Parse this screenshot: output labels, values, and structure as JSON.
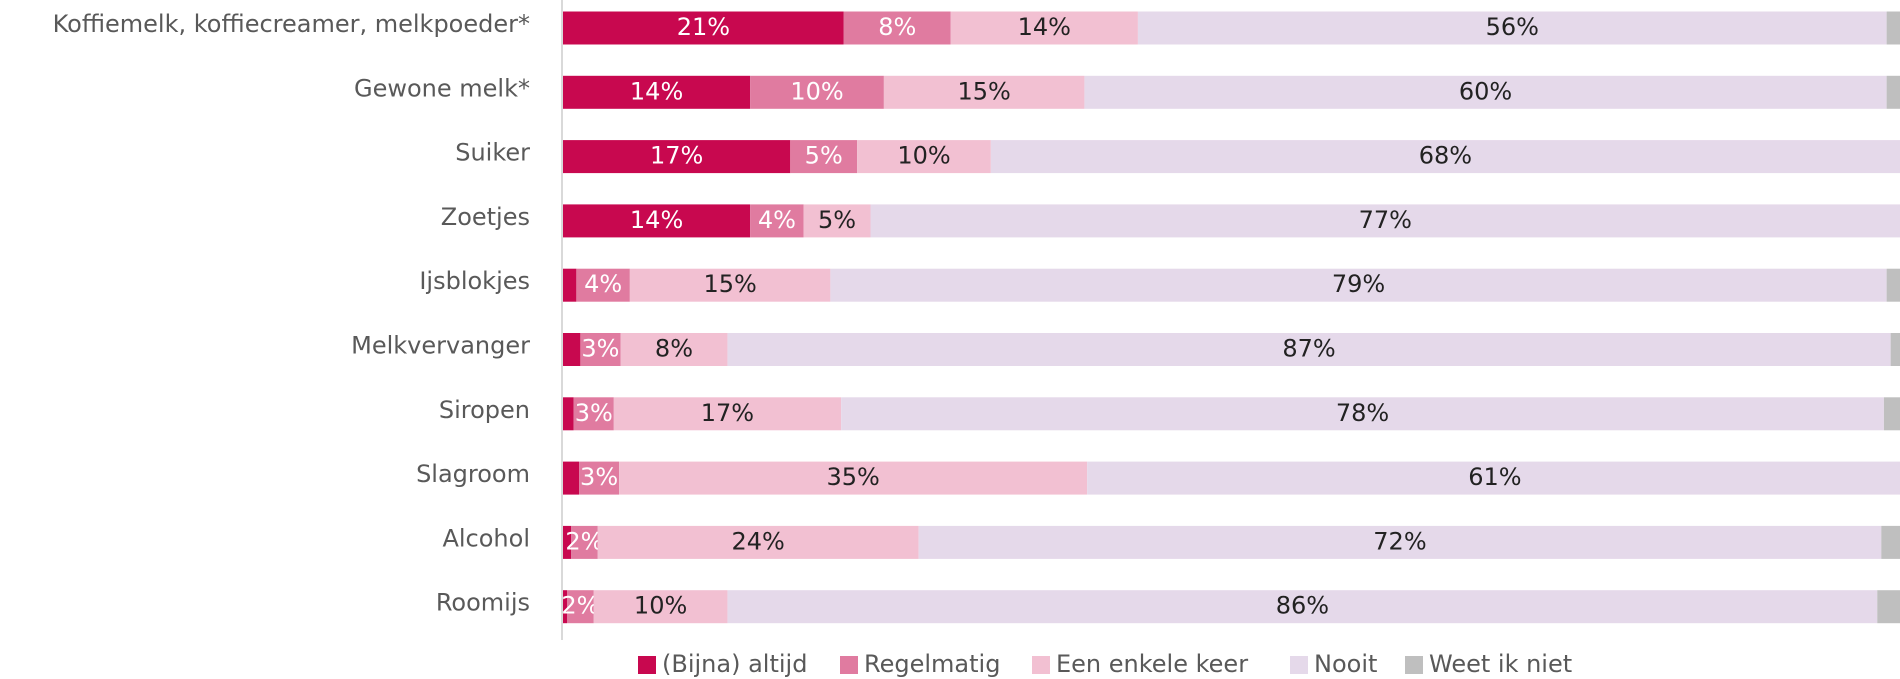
{
  "chart_data": {
    "type": "stacked-bar-horizontal",
    "categories": [
      "Koffiemelk, koffiecreamer, melkpoeder*",
      "Gewone melk*",
      "Suiker",
      "Zoetjes",
      "Ijsblokjes",
      "Melkvervanger",
      "Siropen",
      "Slagroom",
      "Alcohol",
      "Roomijs"
    ],
    "xlim": [
      0,
      100
    ],
    "series": [
      {
        "name": "(Bijna) altijd",
        "color": "#c8084f",
        "values": [
          21,
          14,
          17,
          14,
          1,
          1.3,
          0.8,
          1.2,
          0.6,
          0.3
        ],
        "value_labels": [
          "21%",
          "14%",
          "17%",
          "14%",
          null,
          null,
          null,
          null,
          null,
          null
        ]
      },
      {
        "name": "Regelmatig",
        "color": "#e07ba0",
        "values": [
          8,
          10,
          5,
          4,
          4,
          3,
          3,
          3,
          2,
          2
        ],
        "value_labels": [
          "8%",
          "10%",
          "5%",
          "4%",
          "4%",
          "3%",
          "3%",
          "3%",
          "2%",
          "2%"
        ]
      },
      {
        "name": "Een enkele keer",
        "color": "#f2c0d2",
        "values": [
          14,
          15,
          10,
          5,
          15,
          8,
          17,
          35,
          24,
          10
        ],
        "value_labels": [
          "14%",
          "15%",
          "10%",
          "5%",
          "15%",
          "8%",
          "17%",
          "35%",
          "24%",
          "10%"
        ]
      },
      {
        "name": "Nooit",
        "color": "#e5d9ea",
        "values": [
          56,
          60,
          68,
          77,
          79,
          87,
          78,
          61,
          72,
          86
        ],
        "value_labels": [
          "56%",
          "60%",
          "68%",
          "77%",
          "79%",
          "87%",
          "78%",
          "61%",
          "72%",
          "86%"
        ]
      },
      {
        "name": "Weet ik niet",
        "color": "#bfbfbf",
        "values": [
          1,
          1,
          0,
          0,
          1,
          0.7,
          1.2,
          0,
          1.4,
          1.7
        ],
        "value_labels": [
          null,
          null,
          null,
          null,
          null,
          null,
          null,
          null,
          null,
          null
        ]
      }
    ]
  }
}
